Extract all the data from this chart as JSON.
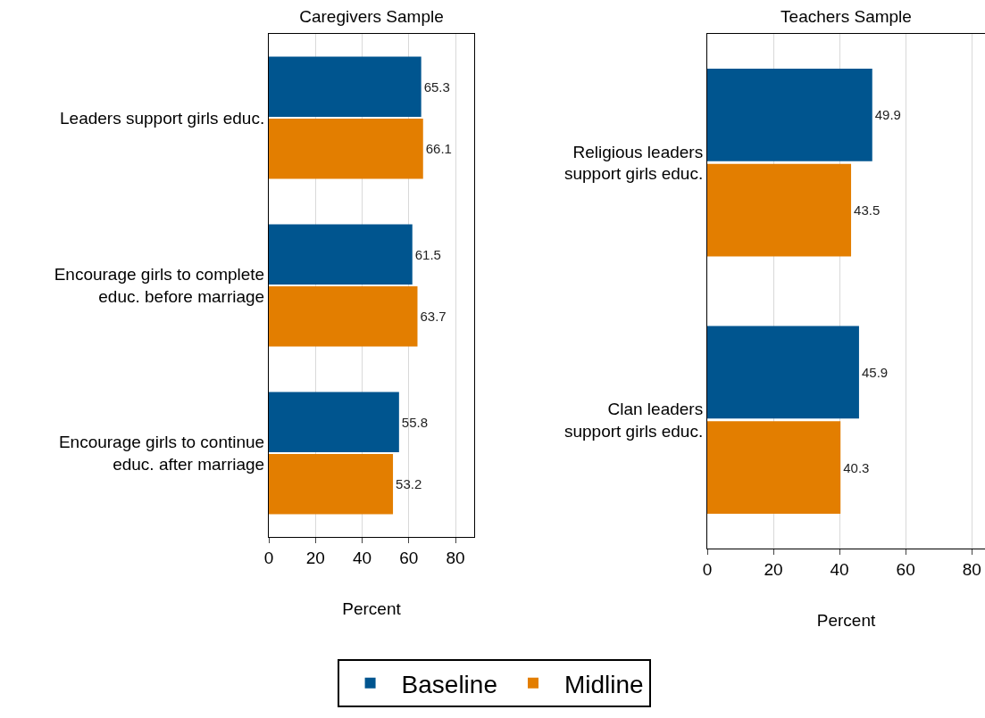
{
  "chart_data": [
    {
      "type": "bar",
      "orientation": "horizontal",
      "title": "Caregivers Sample",
      "xlabel": "Percent",
      "categories": [
        "Leaders support girls educ.",
        "Encourage girls to complete\neduc. before marriage",
        "Encourage girls to continue\neduc. after marriage"
      ],
      "series": [
        {
          "name": "Baseline",
          "color": "#00558f",
          "values": [
            65.3,
            61.5,
            55.8
          ]
        },
        {
          "name": "Midline",
          "color": "#e37e00",
          "values": [
            66.1,
            63.7,
            53.2
          ]
        }
      ],
      "xlim": [
        0,
        88
      ],
      "xticks": [
        0,
        20,
        40,
        60,
        80
      ],
      "grid": "x",
      "data_labels": true,
      "legend": "bottom"
    },
    {
      "type": "bar",
      "orientation": "horizontal",
      "title": "Teachers Sample",
      "xlabel": "Percent",
      "categories": [
        "Religious leaders\nsupport girls educ.",
        "Clan leaders\nsupport girls educ."
      ],
      "series": [
        {
          "color": "#00558f",
          "values": [
            49.9,
            45.9
          ]
        },
        {
          "color": "#e37e00",
          "values": [
            43.5,
            40.3
          ]
        }
      ],
      "xlim": [
        0,
        84
      ],
      "xticks": [
        0,
        20,
        40,
        60,
        80
      ],
      "grid": "x",
      "data_labels": true
    }
  ]
}
